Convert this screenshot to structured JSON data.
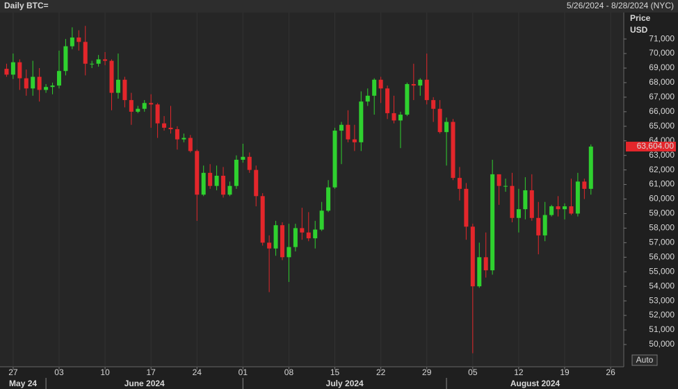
{
  "chart_data": {
    "type": "candlestick",
    "title": "Daily BTC=",
    "subtitle": "5/26/2024 - 8/28/2024 (NYC)",
    "y_label": "Price",
    "y_unit": "USD",
    "button": "Auto",
    "up_color": "#2fd12f",
    "down_color": "#e3262b",
    "x": [
      "2024-05-26",
      "2024-05-27",
      "2024-05-28",
      "2024-05-29",
      "2024-05-30",
      "2024-05-31",
      "2024-06-01",
      "2024-06-02",
      "2024-06-03",
      "2024-06-04",
      "2024-06-05",
      "2024-06-06",
      "2024-06-07",
      "2024-06-08",
      "2024-06-09",
      "2024-06-10",
      "2024-06-11",
      "2024-06-12",
      "2024-06-13",
      "2024-06-14",
      "2024-06-15",
      "2024-06-16",
      "2024-06-17",
      "2024-06-18",
      "2024-06-19",
      "2024-06-20",
      "2024-06-21",
      "2024-06-22",
      "2024-06-23",
      "2024-06-24",
      "2024-06-25",
      "2024-06-26",
      "2024-06-27",
      "2024-06-28",
      "2024-06-29",
      "2024-06-30",
      "2024-07-01",
      "2024-07-02",
      "2024-07-03",
      "2024-07-04",
      "2024-07-05",
      "2024-07-06",
      "2024-07-07",
      "2024-07-08",
      "2024-07-09",
      "2024-07-10",
      "2024-07-11",
      "2024-07-12",
      "2024-07-13",
      "2024-07-14",
      "2024-07-15",
      "2024-07-16",
      "2024-07-17",
      "2024-07-18",
      "2024-07-19",
      "2024-07-20",
      "2024-07-21",
      "2024-07-22",
      "2024-07-23",
      "2024-07-24",
      "2024-07-25",
      "2024-07-26",
      "2024-07-27",
      "2024-07-28",
      "2024-07-29",
      "2024-07-30",
      "2024-07-31",
      "2024-08-01",
      "2024-08-02",
      "2024-08-03",
      "2024-08-04",
      "2024-08-05",
      "2024-08-06",
      "2024-08-07",
      "2024-08-08",
      "2024-08-09",
      "2024-08-10",
      "2024-08-11",
      "2024-08-12",
      "2024-08-13",
      "2024-08-14",
      "2024-08-15",
      "2024-08-16",
      "2024-08-17",
      "2024-08-18",
      "2024-08-19",
      "2024-08-20",
      "2024-08-21",
      "2024-08-22",
      "2024-08-23"
    ],
    "open": [
      68950,
      68550,
      69400,
      68300,
      67600,
      68400,
      67500,
      67700,
      67800,
      68800,
      70500,
      71100,
      70800,
      69300,
      69300,
      69600,
      69500,
      67300,
      68200,
      66800,
      66000,
      66200,
      66600,
      66500,
      65200,
      64900,
      64800,
      64100,
      64200,
      63300,
      60300,
      61800,
      60900,
      61600,
      60300,
      60900,
      62700,
      62900,
      62000,
      60200,
      57000,
      56600,
      58200,
      56000,
      56700,
      58000,
      57700,
      57300,
      57900,
      59200,
      60800,
      64700,
      65100,
      64100,
      63900,
      66700,
      67100,
      68200,
      67600,
      65900,
      65400,
      65800,
      67900,
      67800,
      68200,
      66800,
      66200,
      64600,
      65300,
      61450,
      60700,
      58100,
      54000,
      56000,
      55100,
      61700,
      60900,
      60900,
      58700,
      59300,
      60600,
      58700,
      57500,
      58900,
      59500,
      59300,
      59500,
      59000,
      61200,
      60700
    ],
    "high": [
      69300,
      70000,
      69600,
      68900,
      69500,
      69000,
      67900,
      68000,
      70200,
      71000,
      71800,
      71600,
      71900,
      69500,
      69900,
      70100,
      69600,
      70000,
      68400,
      67300,
      66400,
      66800,
      67200,
      66600,
      65700,
      66400,
      65000,
      64500,
      64400,
      63400,
      62300,
      62400,
      62300,
      62200,
      61200,
      63000,
      63800,
      63200,
      62300,
      60400,
      57500,
      58500,
      58400,
      58300,
      58300,
      59400,
      59100,
      58500,
      59800,
      61300,
      64900,
      65300,
      66100,
      65100,
      67400,
      67600,
      68300,
      68400,
      67800,
      67100,
      66000,
      68000,
      69300,
      68300,
      70000,
      67000,
      66800,
      65600,
      65500,
      62200,
      61100,
      58300,
      57000,
      57700,
      62700,
      61700,
      61400,
      61800,
      60700,
      61500,
      61700,
      59800,
      59800,
      59600,
      60200,
      59700,
      61400,
      61800,
      61400,
      63750
    ],
    "low": [
      68400,
      68250,
      67500,
      67100,
      67100,
      66700,
      67300,
      67200,
      67600,
      68500,
      70300,
      70200,
      68500,
      69000,
      69100,
      69200,
      66100,
      66900,
      66300,
      65100,
      65900,
      66000,
      64900,
      64200,
      64700,
      64500,
      63400,
      63900,
      63200,
      58500,
      60200,
      60700,
      60600,
      60100,
      60200,
      60700,
      62500,
      61800,
      59500,
      56800,
      53600,
      56100,
      55800,
      54300,
      56400,
      57200,
      57100,
      56600,
      57800,
      59100,
      60700,
      62400,
      63900,
      63300,
      63300,
      66400,
      65800,
      66600,
      65500,
      65200,
      63500,
      65700,
      66800,
      67100,
      66500,
      65300,
      64500,
      62300,
      61300,
      59900,
      57200,
      49400,
      53900,
      54600,
      54800,
      59600,
      60500,
      58400,
      57700,
      58600,
      58500,
      56200,
      57100,
      58800,
      58800,
      58600,
      58900,
      58800,
      60000,
      60300
    ],
    "close": [
      68550,
      69400,
      68300,
      67600,
      68400,
      67500,
      67700,
      67800,
      68800,
      70500,
      71100,
      70800,
      69300,
      69300,
      69600,
      69500,
      67300,
      68200,
      66800,
      66000,
      66200,
      66600,
      66500,
      65200,
      64900,
      64800,
      64100,
      64200,
      63300,
      60300,
      61800,
      60900,
      61600,
      60300,
      60900,
      62700,
      62900,
      62000,
      60200,
      57000,
      56600,
      58200,
      56000,
      56700,
      58000,
      57700,
      57300,
      57900,
      59200,
      60800,
      64700,
      65100,
      64100,
      63900,
      66700,
      67100,
      68200,
      67600,
      65900,
      65400,
      65800,
      67900,
      67800,
      68200,
      66800,
      66200,
      64600,
      65300,
      61450,
      60700,
      58100,
      54000,
      56000,
      55100,
      61700,
      60900,
      60900,
      58700,
      59300,
      60600,
      58700,
      57500,
      58900,
      59500,
      59300,
      59500,
      59000,
      61200,
      60700,
      63604
    ],
    "last_price": {
      "value": 63604,
      "label": "63,604.00"
    },
    "xlim": [
      "2024-05-25",
      "2024-08-28"
    ],
    "xticks": [
      {
        "value": "2024-05-27",
        "label": "27"
      },
      {
        "value": "2024-06-03",
        "label": "03"
      },
      {
        "value": "2024-06-10",
        "label": "10"
      },
      {
        "value": "2024-06-17",
        "label": "17"
      },
      {
        "value": "2024-06-24",
        "label": "24"
      },
      {
        "value": "2024-07-01",
        "label": "01"
      },
      {
        "value": "2024-07-08",
        "label": "08"
      },
      {
        "value": "2024-07-15",
        "label": "15"
      },
      {
        "value": "2024-07-22",
        "label": "22"
      },
      {
        "value": "2024-07-29",
        "label": "29"
      },
      {
        "value": "2024-08-05",
        "label": "05"
      },
      {
        "value": "2024-08-12",
        "label": "12"
      },
      {
        "value": "2024-08-19",
        "label": "19"
      },
      {
        "value": "2024-08-26",
        "label": "26"
      }
    ],
    "month_labels": [
      {
        "value": "2024-05",
        "label": "May 24"
      },
      {
        "value": "2024-06",
        "label": "June 2024"
      },
      {
        "value": "2024-07",
        "label": "July 2024"
      },
      {
        "value": "2024-08",
        "label": "August 2024"
      }
    ],
    "ylim": [
      48470,
      72820
    ],
    "yticks": [
      {
        "value": 50000,
        "label": "50,000"
      },
      {
        "value": 51000,
        "label": "51,000"
      },
      {
        "value": 52000,
        "label": "52,000"
      },
      {
        "value": 53000,
        "label": "53,000"
      },
      {
        "value": 54000,
        "label": "54,000"
      },
      {
        "value": 55000,
        "label": "55,000"
      },
      {
        "value": 56000,
        "label": "56,000"
      },
      {
        "value": 57000,
        "label": "57,000"
      },
      {
        "value": 58000,
        "label": "58,000"
      },
      {
        "value": 59000,
        "label": "59,000"
      },
      {
        "value": 60000,
        "label": "60,000"
      },
      {
        "value": 61000,
        "label": "61,000"
      },
      {
        "value": 62000,
        "label": "62,000"
      },
      {
        "value": 63000,
        "label": "63,000"
      },
      {
        "value": 64000,
        "label": "64,000"
      },
      {
        "value": 65000,
        "label": "65,000"
      },
      {
        "value": 66000,
        "label": "66,000"
      },
      {
        "value": 67000,
        "label": "67,000"
      },
      {
        "value": 68000,
        "label": "68,000"
      },
      {
        "value": 69000,
        "label": "69,000"
      },
      {
        "value": 70000,
        "label": "70,000"
      },
      {
        "value": 71000,
        "label": "71,000"
      }
    ],
    "grid": true
  }
}
